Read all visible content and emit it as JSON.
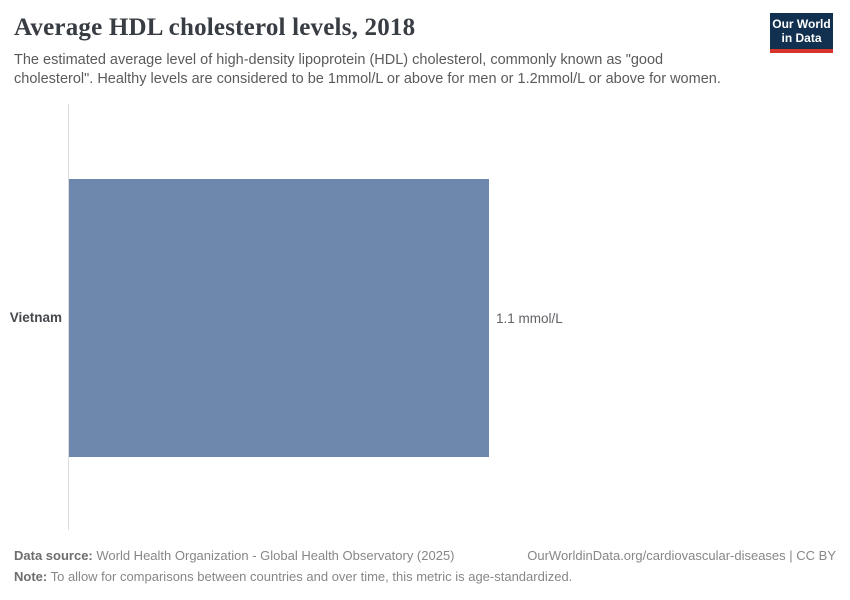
{
  "header": {
    "title": "Average HDL cholesterol levels, 2018",
    "subtitle": "The estimated average level of high-density lipoprotein (HDL) cholesterol, commonly known as \"good cholesterol\". Healthy levels are considered to be 1mmol/L or above for men or 1.2mmol/L or above for women.",
    "logo": {
      "line1": "Our World",
      "line2": "in Data"
    }
  },
  "chart_data": {
    "type": "bar",
    "orientation": "horizontal",
    "title": "Average HDL cholesterol levels, 2018",
    "categories": [
      "Vietnam"
    ],
    "values": [
      1.1
    ],
    "unit": "mmol/L",
    "value_labels": [
      "1.1 mmol/L"
    ],
    "xlim": [
      0,
      1.1
    ],
    "bar_color": "#6e87ac",
    "grid": false,
    "legend": "none"
  },
  "footer": {
    "datasource_label": "Data source:",
    "datasource_text": " World Health Organization - Global Health Observatory (2025)",
    "link_text": "OurWorldinData.org/cardiovascular-diseases | CC BY",
    "note_label": "Note:",
    "note_text": " To allow for comparisons between countries and over time, this metric is age-standardized."
  },
  "colors": {
    "bar": "#6e87ac",
    "logo_navy": "#12304f",
    "logo_red": "#d5352b",
    "title_text": "#383d43",
    "subtitle_text": "#5b5b5b",
    "footer_text": "#878787",
    "axis_line": "#dcdcdc"
  }
}
